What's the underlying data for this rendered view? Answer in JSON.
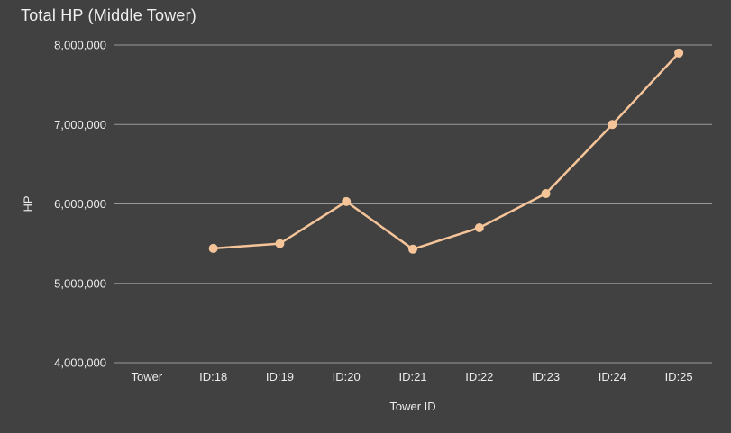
{
  "window": {
    "background_color": "#414141"
  },
  "chart_data": {
    "type": "line",
    "title": "Total HP (Middle Tower)",
    "xlabel": "Tower ID",
    "ylabel": "HP",
    "categories": [
      "Tower",
      "ID:18",
      "ID:19",
      "ID:20",
      "ID:21",
      "ID:22",
      "ID:23",
      "ID:24",
      "ID:25"
    ],
    "series": [
      {
        "name": "Total HP",
        "values": [
          null,
          5440000,
          5500000,
          6030000,
          5430000,
          5700000,
          6130000,
          7000000,
          7900000
        ],
        "color": "#f5c499",
        "point_radius": 5,
        "line_width": 2.5
      }
    ],
    "ylim": [
      4000000,
      8000000
    ],
    "yticks": {
      "values": [
        4000000,
        5000000,
        6000000,
        7000000,
        8000000
      ],
      "labels": [
        "4,000,000",
        "5,000,000",
        "6,000,000",
        "7,000,000",
        "8,000,000"
      ]
    },
    "grid": true,
    "legend_position": "none",
    "gridline_color": "#999999",
    "text_color": "#ececec",
    "background_color": "#414141"
  }
}
